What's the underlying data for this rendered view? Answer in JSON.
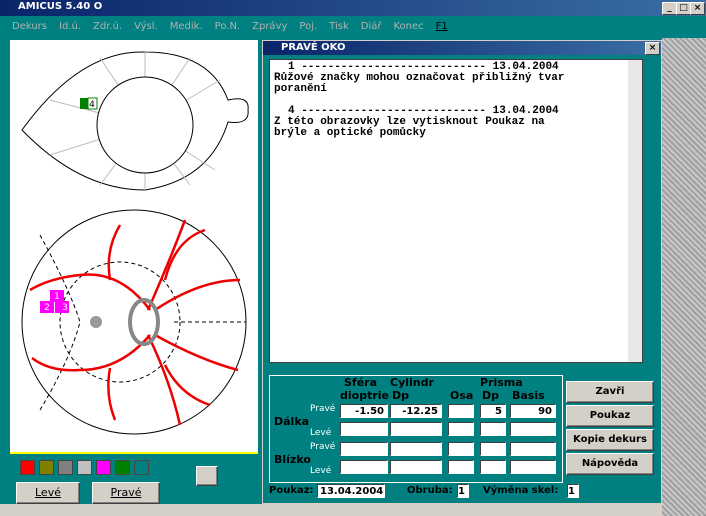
{
  "window": {
    "title": "AMICUS 5.40 O",
    "menu": [
      "Dekurs",
      "Id.ú.",
      "Zdr.ú.",
      "Výsl.",
      "Medik.",
      "Po.N.",
      "Zprávy",
      "Poj.",
      "Tisk",
      "Diář",
      "Konec",
      "F1"
    ]
  },
  "left_panel": {
    "top_marker": "4",
    "bottom_markers": [
      "1",
      "2",
      "3"
    ],
    "buttons": [
      "Levé",
      "Pravé"
    ]
  },
  "dialog": {
    "title": "PRAVÉ OKO",
    "entries": [
      {
        "header": "1 ---------------------------- 13.04.2004",
        "lines": [
          "Růžové značky mohou označovat přibližný tvar",
          "poranění"
        ]
      },
      {
        "header": "4 ---------------------------- 13.04.2004",
        "lines": [
          "Z této obrazovky lze vytisknout Poukaz na",
          "brýle a optické pomůcky"
        ]
      }
    ],
    "table": {
      "groups": [
        "Sféra",
        "Cylindr",
        "Prisma"
      ],
      "columns": [
        "dioptrie",
        "Dp",
        "Osa",
        "Dp",
        "Basis"
      ],
      "sections": [
        {
          "name": "Dálka",
          "rows": [
            {
              "label": "Pravé",
              "cells": [
                "-1.50",
                "-12.25",
                "",
                "5",
                "90"
              ]
            },
            {
              "label": "Levé",
              "cells": [
                "",
                "",
                "",
                "",
                ""
              ]
            }
          ]
        },
        {
          "name": "Blízko",
          "rows": [
            {
              "label": "Pravé",
              "cells": [
                "",
                "",
                "",
                "",
                ""
              ]
            },
            {
              "label": "Levé",
              "cells": [
                "",
                "",
                "",
                "",
                ""
              ]
            }
          ]
        }
      ]
    },
    "buttons": [
      "Zavři",
      "Poukaz",
      "Kopie dekurs",
      "Nápověda"
    ],
    "footer": {
      "poukaz_label": "Poukaz:",
      "poukaz_value": "13.04.2004",
      "obruba_label": "Obruba:",
      "obruba_value": "1",
      "vymena_label": "Výměna skel:",
      "vymena_value": "1"
    }
  }
}
